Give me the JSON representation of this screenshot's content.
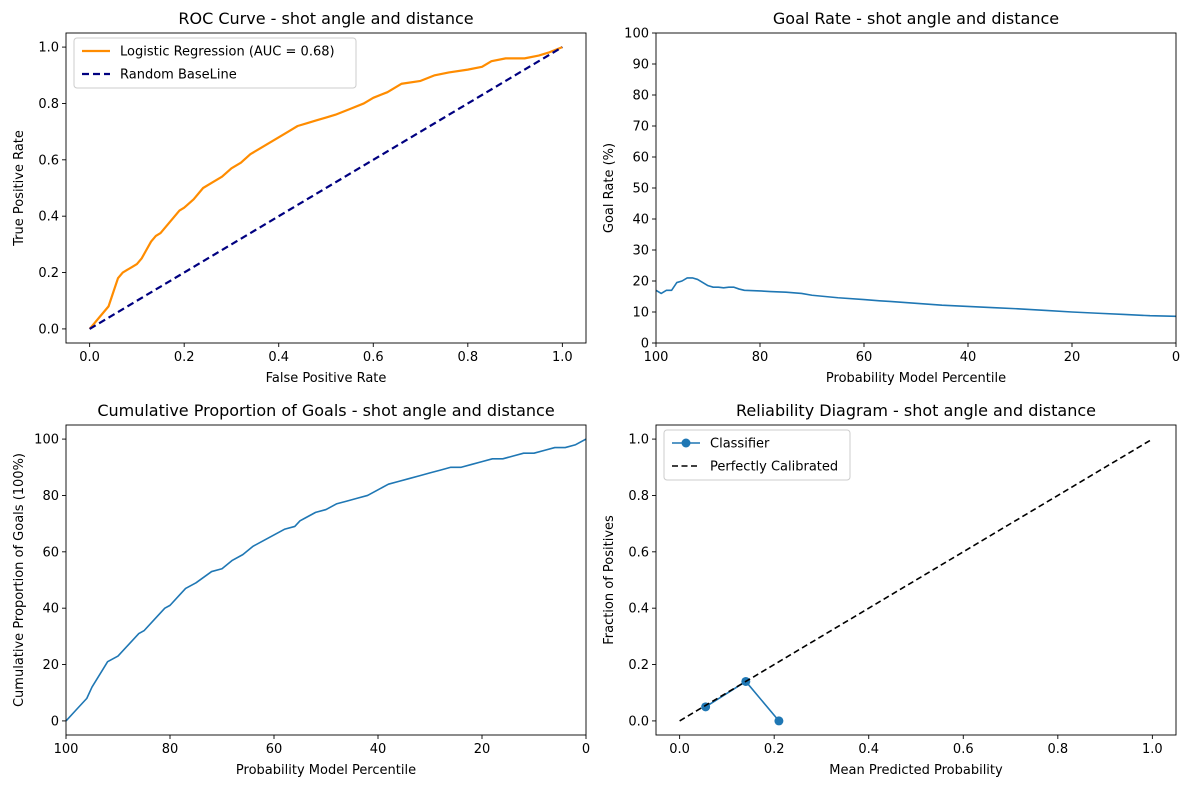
{
  "chart_data": [
    {
      "type": "line",
      "title": "ROC Curve - shot angle and distance",
      "xlabel": "False Positive Rate",
      "ylabel": "True Positive Rate",
      "xlim": [
        -0.05,
        1.05
      ],
      "ylim": [
        -0.05,
        1.05
      ],
      "xticks": [
        0.0,
        0.2,
        0.4,
        0.6,
        0.8,
        1.0
      ],
      "yticks": [
        0.0,
        0.2,
        0.4,
        0.6,
        0.8,
        1.0
      ],
      "xtick_labels": [
        "0.0",
        "0.2",
        "0.4",
        "0.6",
        "0.8",
        "1.0"
      ],
      "ytick_labels": [
        "0.0",
        "0.2",
        "0.4",
        "0.6",
        "0.8",
        "1.0"
      ],
      "legend_position": "top-left",
      "series": [
        {
          "name": "Logistic Regression (AUC = 0.68)",
          "color": "#ff8c00",
          "style": "solid",
          "x": [
            0.0,
            0.01,
            0.02,
            0.03,
            0.04,
            0.05,
            0.06,
            0.07,
            0.08,
            0.09,
            0.1,
            0.11,
            0.12,
            0.13,
            0.14,
            0.15,
            0.16,
            0.17,
            0.18,
            0.19,
            0.2,
            0.22,
            0.24,
            0.26,
            0.28,
            0.3,
            0.32,
            0.34,
            0.36,
            0.38,
            0.4,
            0.42,
            0.44,
            0.46,
            0.48,
            0.5,
            0.52,
            0.55,
            0.58,
            0.6,
            0.63,
            0.66,
            0.7,
            0.73,
            0.76,
            0.8,
            0.83,
            0.85,
            0.88,
            0.92,
            0.95,
            0.97,
            1.0
          ],
          "y": [
            0.0,
            0.02,
            0.04,
            0.06,
            0.08,
            0.13,
            0.18,
            0.2,
            0.21,
            0.22,
            0.23,
            0.25,
            0.28,
            0.31,
            0.33,
            0.34,
            0.36,
            0.38,
            0.4,
            0.42,
            0.43,
            0.46,
            0.5,
            0.52,
            0.54,
            0.57,
            0.59,
            0.62,
            0.64,
            0.66,
            0.68,
            0.7,
            0.72,
            0.73,
            0.74,
            0.75,
            0.76,
            0.78,
            0.8,
            0.82,
            0.84,
            0.87,
            0.88,
            0.9,
            0.91,
            0.92,
            0.93,
            0.95,
            0.96,
            0.96,
            0.97,
            0.98,
            1.0
          ]
        },
        {
          "name": "Random BaseLine",
          "color": "#000080",
          "style": "dashed",
          "x": [
            0.0,
            1.0
          ],
          "y": [
            0.0,
            1.0
          ]
        }
      ]
    },
    {
      "type": "line",
      "title": "Goal Rate - shot angle and distance",
      "xlabel": "Probability Model Percentile",
      "ylabel": "Goal Rate (%)",
      "xlim": [
        100,
        0
      ],
      "ylim": [
        0,
        100
      ],
      "x_inverted": true,
      "xticks": [
        100,
        80,
        60,
        40,
        20,
        0
      ],
      "yticks": [
        0,
        10,
        20,
        30,
        40,
        50,
        60,
        70,
        80,
        90,
        100
      ],
      "xtick_labels": [
        "100",
        "80",
        "60",
        "40",
        "20",
        "0"
      ],
      "ytick_labels": [
        "0",
        "10",
        "20",
        "30",
        "40",
        "50",
        "60",
        "70",
        "80",
        "90",
        "100"
      ],
      "series": [
        {
          "color": "#1f77b4",
          "x": [
            100,
            99,
            98,
            97,
            96,
            95,
            94,
            93,
            92,
            91,
            90,
            89,
            88,
            87,
            86,
            85,
            84,
            83,
            80,
            78,
            75,
            72,
            70,
            65,
            60,
            57,
            55,
            50,
            45,
            40,
            35,
            30,
            25,
            20,
            15,
            10,
            5,
            0
          ],
          "y": [
            17,
            16,
            17,
            17,
            19.5,
            20,
            21,
            21,
            20.5,
            19.5,
            18.5,
            18,
            18,
            17.8,
            18,
            18,
            17.4,
            17,
            16.8,
            16.6,
            16.4,
            16,
            15.4,
            14.6,
            14,
            13.6,
            13.4,
            12.8,
            12.2,
            11.8,
            11.4,
            11,
            10.5,
            10,
            9.6,
            9.2,
            8.8,
            8.6
          ]
        }
      ]
    },
    {
      "type": "line",
      "title": "Cumulative Proportion of Goals - shot angle and distance",
      "xlabel": "Probability Model Percentile",
      "ylabel": "Cumulative Proportion of Goals (100%)",
      "xlim": [
        100,
        0
      ],
      "ylim": [
        -5,
        105
      ],
      "x_inverted": true,
      "xticks": [
        100,
        80,
        60,
        40,
        20,
        0
      ],
      "yticks": [
        0,
        20,
        40,
        60,
        80,
        100
      ],
      "xtick_labels": [
        "100",
        "80",
        "60",
        "40",
        "20",
        "0"
      ],
      "ytick_labels": [
        "0",
        "20",
        "40",
        "60",
        "80",
        "100"
      ],
      "series": [
        {
          "color": "#1f77b4",
          "x": [
            100,
            98,
            96,
            95,
            93,
            92,
            90,
            88,
            86,
            85,
            83,
            81,
            80,
            78,
            77,
            75,
            72,
            70,
            68,
            66,
            64,
            62,
            60,
            58,
            56,
            55,
            54,
            52,
            50,
            48,
            46,
            44,
            42,
            40,
            38,
            36,
            34,
            32,
            30,
            28,
            26,
            24,
            22,
            20,
            18,
            16,
            14,
            12,
            10,
            8,
            6,
            4,
            2,
            0
          ],
          "y": [
            0,
            4,
            8,
            12,
            18,
            21,
            23,
            27,
            31,
            32,
            36,
            40,
            41,
            45,
            47,
            49,
            53,
            54,
            57,
            59,
            62,
            64,
            66,
            68,
            69,
            71,
            72,
            74,
            75,
            77,
            78,
            79,
            80,
            82,
            84,
            85,
            86,
            87,
            88,
            89,
            90,
            90,
            91,
            92,
            93,
            93,
            94,
            95,
            95,
            96,
            97,
            97,
            98,
            100
          ]
        }
      ]
    },
    {
      "type": "line",
      "title": "Reliability Diagram - shot angle and distance",
      "xlabel": "Mean Predicted Probability",
      "ylabel": "Fraction of Positives",
      "xlim": [
        -0.05,
        1.05
      ],
      "ylim": [
        -0.05,
        1.05
      ],
      "xticks": [
        0.0,
        0.2,
        0.4,
        0.6,
        0.8,
        1.0
      ],
      "yticks": [
        0.0,
        0.2,
        0.4,
        0.6,
        0.8,
        1.0
      ],
      "xtick_labels": [
        "0.0",
        "0.2",
        "0.4",
        "0.6",
        "0.8",
        "1.0"
      ],
      "ytick_labels": [
        "0.0",
        "0.2",
        "0.4",
        "0.6",
        "0.8",
        "1.0"
      ],
      "legend_position": "top-left",
      "series": [
        {
          "name": "Classifier",
          "color": "#1f77b4",
          "style": "solid",
          "markers": true,
          "x": [
            0.055,
            0.14,
            0.21
          ],
          "y": [
            0.05,
            0.14,
            0.0
          ]
        },
        {
          "name": "Perfectly Calibrated",
          "color": "#000000",
          "style": "dashed",
          "x": [
            0.0,
            1.0
          ],
          "y": [
            0.0,
            1.0
          ]
        }
      ]
    }
  ]
}
